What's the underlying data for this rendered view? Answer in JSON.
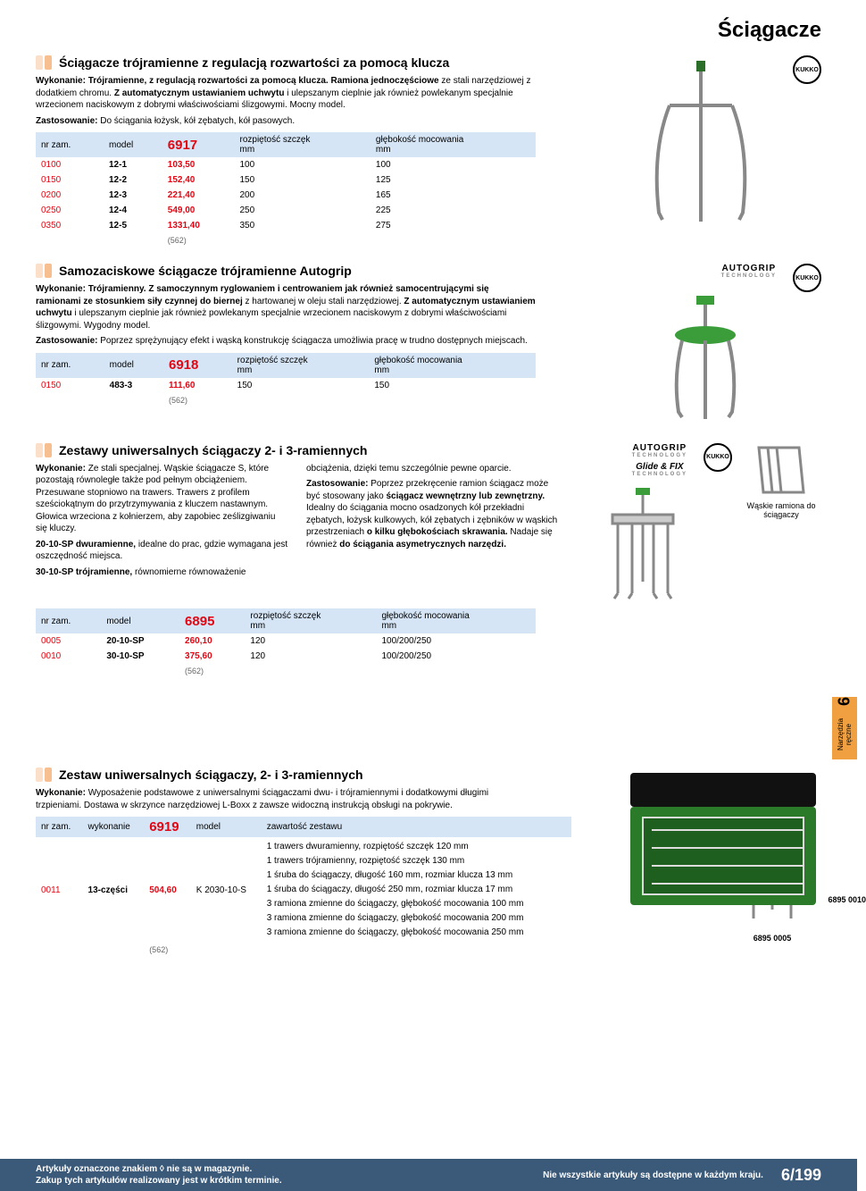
{
  "page_title": "Ściągacze",
  "sections": {
    "s1": {
      "title": "Ściągacze trójramienne z regulacją rozwartości za pomocą klucza",
      "desc1_b": "Wykonanie: Trójramienne, z regulacją rozwartości za pomocą klucza. Ramiona jednoczęściowe",
      "desc1": " ze stali narzędziowej z dodatkiem chromu. ",
      "desc1_b2": "Z automatycznym ustawianiem uchwytu",
      "desc1_rest": " i ulepszanym cieplnie jak również powlekanym specjalnie wrzecionem naciskowym z dobrymi właściwościami ślizgowymi. Mocny model.",
      "desc2_b": "Zastosowanie:",
      "desc2": " Do ściągania łożysk, kół zębatych, kół pasowych.",
      "code": "6917",
      "headers": {
        "h1": "nr zam.",
        "h2": "model",
        "h3": "rozpiętość szczęk",
        "h3u": "mm",
        "h4": "głębokość mocowania",
        "h4u": "mm"
      },
      "rows": [
        {
          "nr": "0100",
          "mdl": "12-1",
          "pr": "103,50",
          "sp": "100",
          "dp": "100"
        },
        {
          "nr": "0150",
          "mdl": "12-2",
          "pr": "152,40",
          "sp": "150",
          "dp": "125"
        },
        {
          "nr": "0200",
          "mdl": "12-3",
          "pr": "221,40",
          "sp": "200",
          "dp": "165"
        },
        {
          "nr": "0250",
          "mdl": "12-4",
          "pr": "549,00",
          "sp": "250",
          "dp": "225"
        },
        {
          "nr": "0350",
          "mdl": "12-5",
          "pr": "1331,40",
          "sp": "350",
          "dp": "275"
        }
      ],
      "note": "(562)"
    },
    "s2": {
      "title": "Samozaciskowe ściągacze trójramienne Autogrip",
      "desc1_b": "Wykonanie: Trójramienny. Z samoczynnym ryglowaniem i centrowaniem jak również samocentrującymi się ramionami ze stosunkiem siły czynnej do biernej",
      "desc1": " z hartowanej w oleju stali narzędziowej. ",
      "desc1_b2": "Z automatycznym ustawianiem uchwytu",
      "desc1_rest": " i ulepszanym cieplnie jak również powlekanym specjalnie wrzecionem naciskowym z dobrymi właściwościami ślizgowymi. Wygodny model.",
      "desc2_b": "Zastosowanie:",
      "desc2": " Poprzez sprężynujący efekt i wąską konstrukcję ściągacza umożliwia pracę w trudno dostępnych miejscach.",
      "code": "6918",
      "headers": {
        "h1": "nr zam.",
        "h2": "model",
        "h3": "rozpiętość szczęk",
        "h3u": "mm",
        "h4": "głębokość mocowania",
        "h4u": "mm"
      },
      "rows": [
        {
          "nr": "0150",
          "mdl": "483-3",
          "pr": "111,60",
          "sp": "150",
          "dp": "150"
        }
      ],
      "note": "(562)"
    },
    "s3": {
      "title": "Zestawy uniwersalnych ściągaczy 2- i 3-ramiennych",
      "col1_b": "Wykonanie:",
      "col1": " Ze stali specjalnej. Wąskie ściągacze S, które pozostają równoległe także pod pełnym obciążeniem. Przesuwane stopniowo na trawers. Trawers z profilem sześciokątnym do przytrzymywania z kluczem nastawnym. Głowica wrzeciona z kołnierzem, aby zapobiec ześlizgiwaniu się kluczy.",
      "col1_b2": "20-10-SP dwuramienne,",
      "col1_2": " idealne do prac, gdzie wymagana jest oszczędność miejsca.",
      "col1_b3": "30-10-SP trójramienne,",
      "col1_3": " równomierne równoważenie",
      "col2_1": "obciążenia, dzięki temu szczególnie pewne oparcie.",
      "col2_b": "Zastosowanie:",
      "col2_2": " Poprzez przekręcenie ramion ściągacz może być stosowany jako ",
      "col2_b2": "ściągacz wewnętrzny lub zewnętrzny.",
      "col2_3": " Idealny do ściągania mocno osadzonych kół przekładni zębatych, łożysk kulkowych, kół zębatych i zębników w wąskich przestrzeniach ",
      "col2_b3": "o kilku głębokościach skrawania.",
      "col2_4": " Nadaje się również ",
      "col2_b4": "do ściągania asymetrycznych narzędzi.",
      "caption": "Wąskie ramiona do ściągaczy",
      "code": "6895",
      "headers": {
        "h1": "nr zam.",
        "h2": "model",
        "h3": "rozpiętość szczęk",
        "h3u": "mm",
        "h4": "głębokość mocowania",
        "h4u": "mm"
      },
      "rows": [
        {
          "nr": "0005",
          "mdl": "20-10-SP",
          "pr": "260,10",
          "sp": "120",
          "dp": "100/200/250"
        },
        {
          "nr": "0010",
          "mdl": "30-10-SP",
          "pr": "375,60",
          "sp": "120",
          "dp": "100/200/250"
        }
      ],
      "note": "(562)",
      "img1_cap": "6895 0005",
      "img2_cap": "6895 0010"
    },
    "s4": {
      "title": "Zestaw uniwersalnych ściągaczy, 2- i 3-ramiennych",
      "desc_b": "Wykonanie:",
      "desc": " Wyposażenie podstawowe z uniwersalnymi ściągaczami dwu- i trójramiennymi i dodatkowymi długimi trzpieniami. Dostawa w skrzynce narzędziowej L-Boxx z zawsze widoczną instrukcją obsługi na pokrywie.",
      "code": "6919",
      "headers": {
        "h1": "nr zam.",
        "h2": "wykonanie",
        "h3": "model",
        "h4": "zawartość zestawu"
      },
      "row": {
        "nr": "0011",
        "wyk": "13-części",
        "pr": "504,60",
        "mdl": "K 2030-10-S"
      },
      "setlist": [
        "1 trawers dwuramienny, rozpiętość szczęk 120 mm",
        "1 trawers trójramienny, rozpiętość szczęk 130 mm",
        "1 śruba do ściągaczy, długość 160 mm, rozmiar klucza 13 mm",
        "1 śruba do ściągaczy, długość 250 mm, rozmiar klucza 17 mm",
        "3 ramiona zmienne do ściągaczy, głębokość mocowania 100 mm",
        "3 ramiona zmienne do ściągaczy, głębokość mocowania 200 mm",
        "3 ramiona zmienne do ściągaczy, głębokość mocowania 250 mm"
      ],
      "note": "(562)"
    }
  },
  "sidetab": {
    "num": "6",
    "text": "Narzędzia ręczne"
  },
  "footer": {
    "l1": "Artykuły oznaczone znakiem ◊ nie są w magazynie.",
    "l2": "Zakup tych artykułów realizowany jest w krótkim terminie.",
    "r1": "Nie wszystkie artykuły są dostępne w każdym kraju.",
    "pn": "6/199"
  },
  "autogrip": "AUTOGRIP",
  "autogrip_sub": "TECHNOLOGY",
  "glidefix": "Glide & FIX",
  "kukko": "KUKKO"
}
